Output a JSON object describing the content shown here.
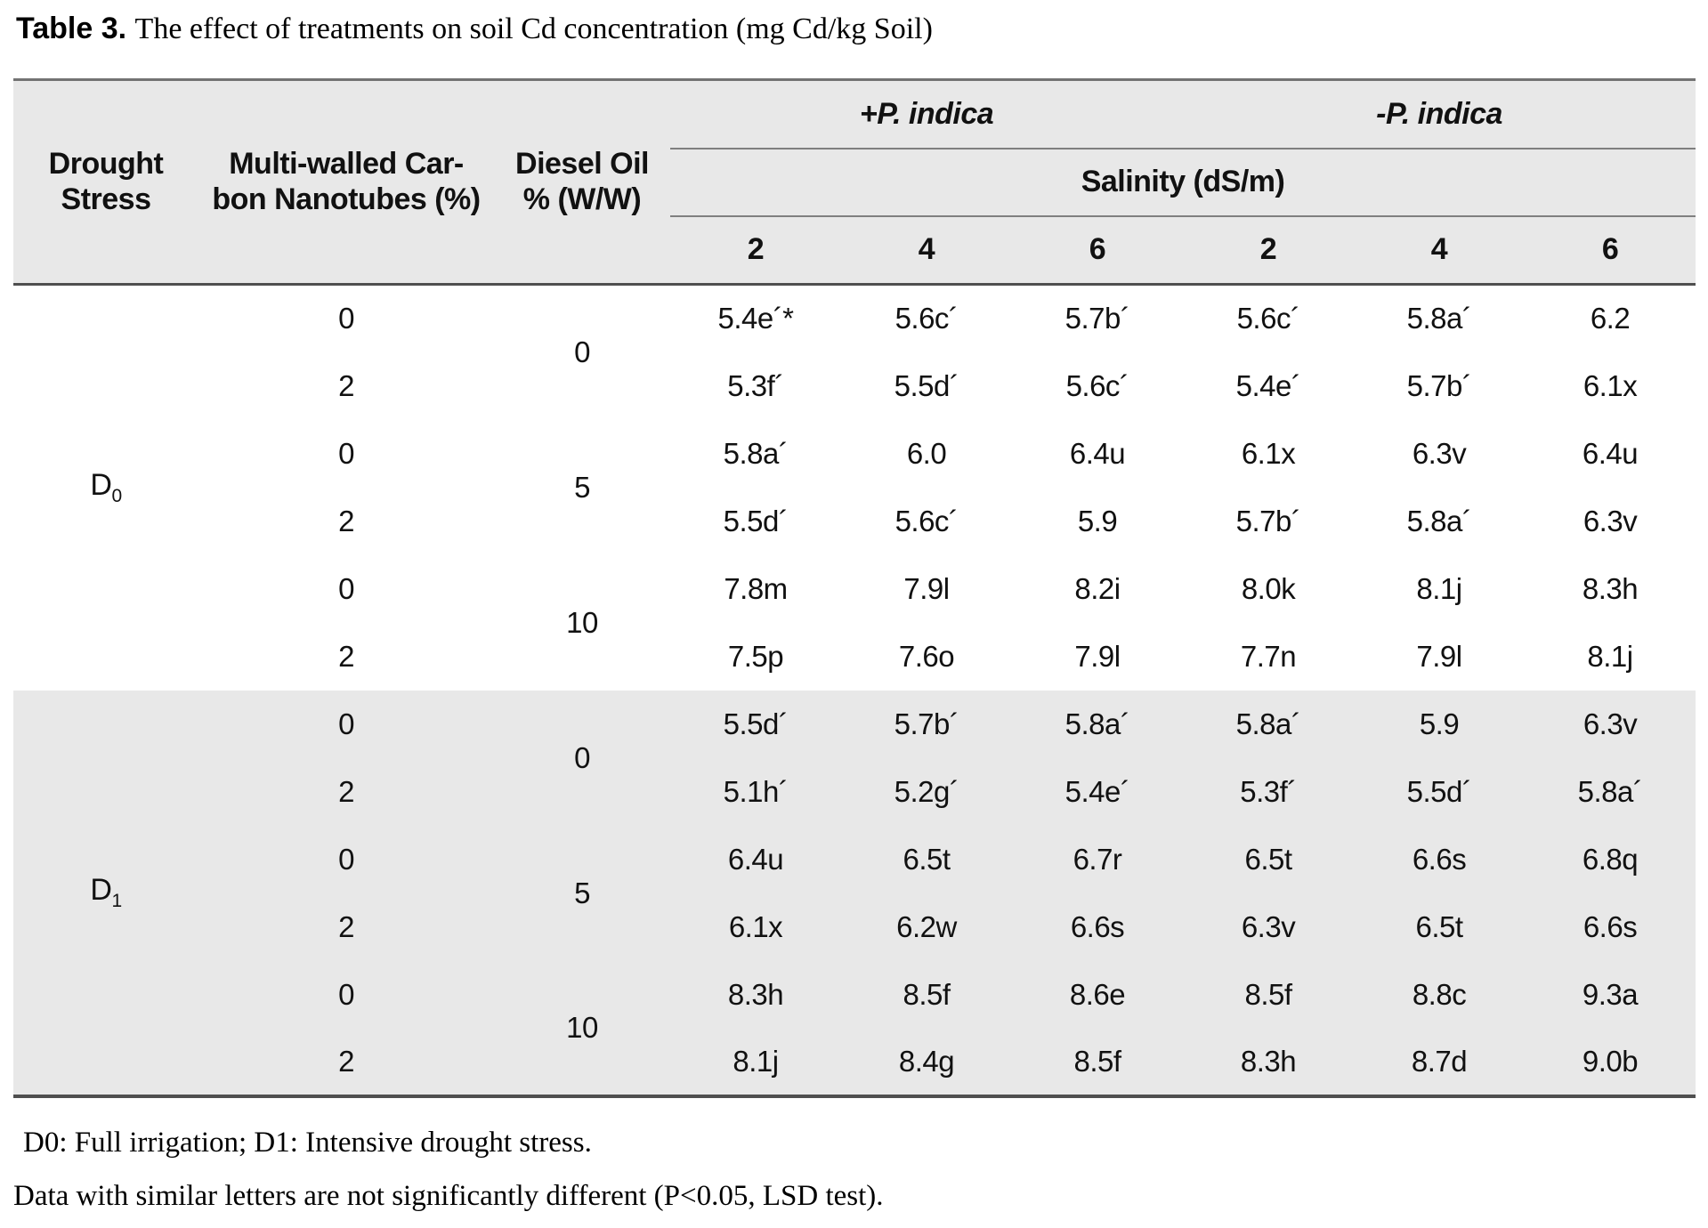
{
  "title": {
    "label": "Table 3.",
    "text": "The effect of treatments on soil Cd concentration (mg Cd/kg Soil)"
  },
  "table": {
    "col_headers": {
      "drought_line1": "Drought",
      "drought_line2": "Stress",
      "mwcnt_line1": "Multi-walled Car-",
      "mwcnt_line2": "bon Nanotubes (%)",
      "diesel_line1": "Diesel Oil",
      "diesel_line2": "% (W/W)",
      "plus_pindica": "+P. indica",
      "minus_pindica": "-P. indica",
      "salinity": "Salinity (dS/m)",
      "salinity_levels": [
        "2",
        "4",
        "6",
        "2",
        "4",
        "6"
      ]
    },
    "sections": [
      {
        "drought_label": "D",
        "drought_sub": "0",
        "groups": [
          {
            "diesel": "0",
            "rows": [
              {
                "mwcnt": "0",
                "values": [
                  "5.4e´*",
                  "5.6c´",
                  "5.7b´",
                  "5.6c´",
                  "5.8a´",
                  "6.2"
                ]
              },
              {
                "mwcnt": "2",
                "values": [
                  "5.3f´",
                  "5.5d´",
                  "5.6c´",
                  "5.4e´",
                  "5.7b´",
                  "6.1x"
                ]
              }
            ]
          },
          {
            "diesel": "5",
            "rows": [
              {
                "mwcnt": "0",
                "values": [
                  "5.8a´",
                  "6.0",
                  "6.4u",
                  "6.1x",
                  "6.3v",
                  "6.4u"
                ]
              },
              {
                "mwcnt": "2",
                "values": [
                  "5.5d´",
                  "5.6c´",
                  "5.9",
                  "5.7b´",
                  "5.8a´",
                  "6.3v"
                ]
              }
            ]
          },
          {
            "diesel": "10",
            "rows": [
              {
                "mwcnt": "0",
                "values": [
                  "7.8m",
                  "7.9l",
                  "8.2i",
                  "8.0k",
                  "8.1j",
                  "8.3h"
                ]
              },
              {
                "mwcnt": "2",
                "values": [
                  "7.5p",
                  "7.6o",
                  "7.9l",
                  "7.7n",
                  "7.9l",
                  "8.1j"
                ]
              }
            ]
          }
        ]
      },
      {
        "drought_label": "D",
        "drought_sub": "1",
        "groups": [
          {
            "diesel": "0",
            "rows": [
              {
                "mwcnt": "0",
                "values": [
                  "5.5d´",
                  "5.7b´",
                  "5.8a´",
                  "5.8a´",
                  "5.9",
                  "6.3v"
                ]
              },
              {
                "mwcnt": "2",
                "values": [
                  "5.1h´",
                  "5.2g´",
                  "5.4e´",
                  "5.3f´",
                  "5.5d´",
                  "5.8a´"
                ]
              }
            ]
          },
          {
            "diesel": "5",
            "rows": [
              {
                "mwcnt": "0",
                "values": [
                  "6.4u",
                  "6.5t",
                  "6.7r",
                  "6.5t",
                  "6.6s",
                  "6.8q"
                ]
              },
              {
                "mwcnt": "2",
                "values": [
                  "6.1x",
                  "6.2w",
                  "6.6s",
                  "6.3v",
                  "6.5t",
                  "6.6s"
                ]
              }
            ]
          },
          {
            "diesel": "10",
            "rows": [
              {
                "mwcnt": "0",
                "values": [
                  "8.3h",
                  "8.5f",
                  "8.6e",
                  "8.5f",
                  "8.8c",
                  "9.3a"
                ]
              },
              {
                "mwcnt": "2",
                "values": [
                  "8.1j",
                  "8.4g",
                  "8.5f",
                  "8.3h",
                  "8.7d",
                  "9.0b"
                ]
              }
            ]
          }
        ]
      }
    ]
  },
  "footnotes": {
    "line1": "D0: Full irrigation; D1: Intensive drought stress.",
    "line2": "Data with similar letters are not significantly different (P<0.05, LSD test)."
  }
}
